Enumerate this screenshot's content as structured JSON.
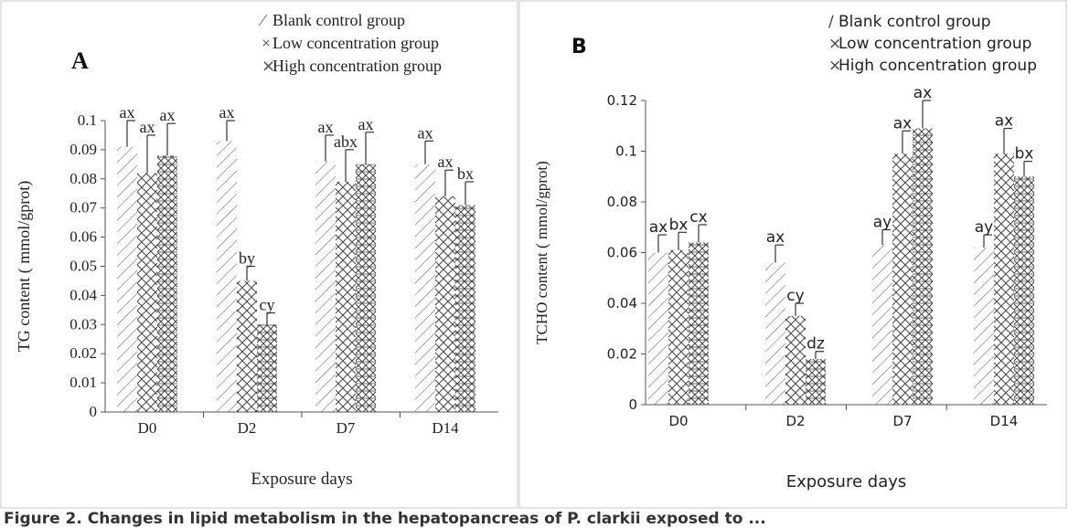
{
  "caption": "Figure 2. Changes in lipid metabolism in the hepatopancreas of P. clarkii exposed to ...",
  "chart_data": [
    {
      "type": "bar",
      "panel_label": "A",
      "title": "",
      "xlabel": "Exposure days",
      "ylabel": "TG content ( mmol/gprot)",
      "categories": [
        "D0",
        "D2",
        "D7",
        "D14"
      ],
      "ylim": [
        0,
        0.1
      ],
      "yticks": [
        "0",
        "0.01",
        "0.02",
        "0.03",
        "0.04",
        "0.05",
        "0.06",
        "0.07",
        "0.08",
        "0.09",
        "0.1"
      ],
      "grid": false,
      "legend_position": "top-right",
      "series": [
        {
          "name": "Blank control group",
          "pattern": "diagonal",
          "values": [
            0.091,
            0.093,
            0.086,
            0.085
          ],
          "errors": [
            0.009,
            0.007,
            0.009,
            0.008
          ],
          "labels": [
            "ax",
            "ax",
            "ax",
            "ax"
          ]
        },
        {
          "name": "Low concentration group",
          "pattern": "crosshatch",
          "values": [
            0.082,
            0.045,
            0.079,
            0.074
          ],
          "errors": [
            0.013,
            0.005,
            0.011,
            0.009
          ],
          "labels": [
            "ax",
            "by",
            "abx",
            "ax"
          ]
        },
        {
          "name": "High concentration group",
          "pattern": "crosshatch-dense",
          "values": [
            0.088,
            0.03,
            0.085,
            0.071
          ],
          "errors": [
            0.011,
            0.004,
            0.011,
            0.008
          ],
          "labels": [
            "ax",
            "cy",
            "ax",
            "bx"
          ]
        }
      ]
    },
    {
      "type": "bar",
      "panel_label": "B",
      "title": "",
      "xlabel": "Exposure days",
      "ylabel": "TCHO content ( mmol/gprot)",
      "categories": [
        "D0",
        "D2",
        "D7",
        "D14"
      ],
      "ylim": [
        0,
        0.12
      ],
      "yticks": [
        "0",
        "0.02",
        "0.04",
        "0.06",
        "0.08",
        "0.1",
        "0.12"
      ],
      "grid": false,
      "legend_position": "top-right",
      "series": [
        {
          "name": "Blank control group",
          "pattern": "diagonal",
          "values": [
            0.06,
            0.056,
            0.063,
            0.062
          ],
          "errors": [
            0.007,
            0.007,
            0.006,
            0.005
          ],
          "labels": [
            "ax",
            "ax",
            "ay",
            "ay"
          ]
        },
        {
          "name": "Low concentration group",
          "pattern": "crosshatch",
          "values": [
            0.061,
            0.035,
            0.099,
            0.099
          ],
          "errors": [
            0.007,
            0.005,
            0.009,
            0.01
          ],
          "labels": [
            "bx",
            "cy",
            "ax",
            "ax"
          ]
        },
        {
          "name": "High concentration group",
          "pattern": "crosshatch-dense",
          "values": [
            0.064,
            0.018,
            0.109,
            0.09
          ],
          "errors": [
            0.007,
            0.003,
            0.011,
            0.006
          ],
          "labels": [
            "cx",
            "dz",
            "ax",
            "bx"
          ]
        }
      ]
    }
  ]
}
